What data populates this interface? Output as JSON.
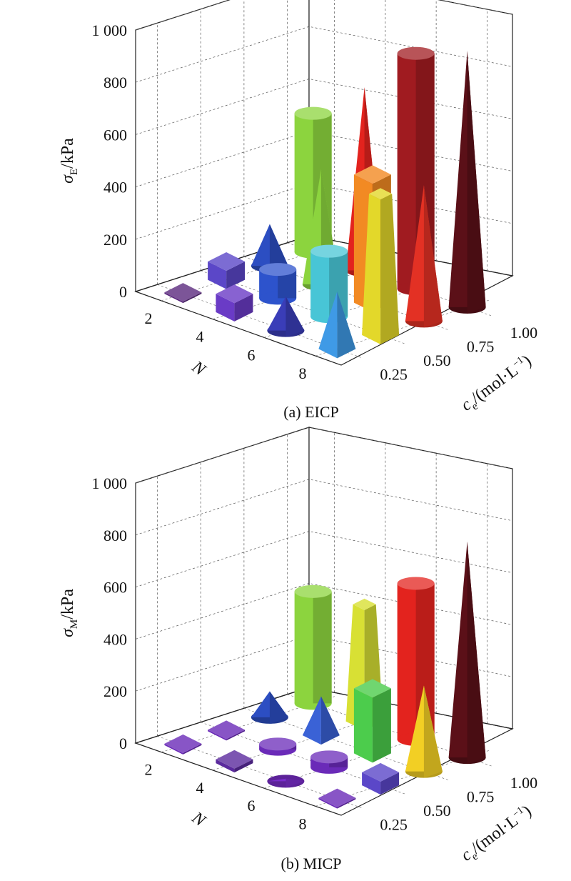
{
  "chart_data": [
    {
      "type": "bar3d",
      "caption": "(a) EICP",
      "ylabel_symbol": "σ",
      "ylabel_sub": "E",
      "ylabel_unit": "/kPa",
      "zlim": [
        0,
        1000
      ],
      "z_ticks": [
        "0",
        "200",
        "400",
        "600",
        "800",
        "1 000"
      ],
      "x_name": "N",
      "x_ticks": [
        "2",
        "4",
        "6",
        "8"
      ],
      "y_name_pre": "c",
      "y_name_sub": "e",
      "y_name_unit": "/(mol·L",
      "y_name_exp": "−1",
      "y_name_close": ")",
      "y_ticks": [
        "0.25",
        "0.50",
        "0.75",
        "1.00"
      ],
      "grid": true,
      "bars": [
        {
          "N": 2,
          "c": 0.25,
          "value": 5,
          "shape": "square",
          "color": "#5b2a7e"
        },
        {
          "N": 4,
          "c": 0.25,
          "value": 70,
          "shape": "square",
          "color": "#6a3bc6"
        },
        {
          "N": 6,
          "c": 0.25,
          "value": 130,
          "shape": "cone",
          "color": "#3a3db8"
        },
        {
          "N": 8,
          "c": 0.25,
          "value": 220,
          "shape": "pyramid",
          "color": "#3f9ae6"
        },
        {
          "N": 2,
          "c": 0.5,
          "value": 70,
          "shape": "hex",
          "color": "#5b47c8"
        },
        {
          "N": 4,
          "c": 0.5,
          "value": 110,
          "shape": "cylinder",
          "color": "#2d53cc"
        },
        {
          "N": 6,
          "c": 0.5,
          "value": 250,
          "shape": "cylinder",
          "color": "#48c5d6"
        },
        {
          "N": 8,
          "c": 0.5,
          "value": 540,
          "shape": "frustum",
          "color": "#e3d82a"
        },
        {
          "N": 2,
          "c": 0.75,
          "value": 160,
          "shape": "cone",
          "color": "#2c4ec2"
        },
        {
          "N": 4,
          "c": 0.75,
          "value": 440,
          "shape": "cone",
          "color": "#8cd43e"
        },
        {
          "N": 6,
          "c": 0.75,
          "value": 490,
          "shape": "box",
          "color": "#f28a23"
        },
        {
          "N": 8,
          "c": 0.75,
          "value": 520,
          "shape": "cone",
          "color": "#e33124"
        },
        {
          "N": 2,
          "c": 1.0,
          "value": 530,
          "shape": "cylinder",
          "color": "#8cd43e"
        },
        {
          "N": 4,
          "c": 1.0,
          "value": 700,
          "shape": "cone",
          "color": "#e3231e"
        },
        {
          "N": 6,
          "c": 1.0,
          "value": 900,
          "shape": "cylinder",
          "color": "#a01b20"
        },
        {
          "N": 8,
          "c": 1.0,
          "value": 980,
          "shape": "cone",
          "color": "#5b1018"
        }
      ]
    },
    {
      "type": "bar3d",
      "caption": "(b) MICP",
      "ylabel_symbol": "σ",
      "ylabel_sub": "M",
      "ylabel_unit": "/kPa",
      "zlim": [
        0,
        1000
      ],
      "z_ticks": [
        "0",
        "200",
        "400",
        "600",
        "800",
        "1 000"
      ],
      "x_name": "N",
      "x_ticks": [
        "2",
        "4",
        "6",
        "8"
      ],
      "y_name_pre": "c",
      "y_name_sub": "e",
      "y_name_unit": "/(mol·L",
      "y_name_exp": "−1",
      "y_name_close": ")",
      "y_ticks": [
        "0.25",
        "0.50",
        "0.75",
        "1.00"
      ],
      "grid": true,
      "bars": [
        {
          "N": 2,
          "c": 0.25,
          "value": 3,
          "shape": "square",
          "color": "#6a2ab8"
        },
        {
          "N": 4,
          "c": 0.25,
          "value": 15,
          "shape": "square",
          "color": "#5b2a9e"
        },
        {
          "N": 6,
          "c": 0.25,
          "value": 10,
          "shape": "cone",
          "color": "#7a2dcc"
        },
        {
          "N": 8,
          "c": 0.25,
          "value": 5,
          "shape": "square",
          "color": "#6a2ab8"
        },
        {
          "N": 2,
          "c": 0.5,
          "value": 5,
          "shape": "square",
          "color": "#6a2ab8"
        },
        {
          "N": 4,
          "c": 0.5,
          "value": 20,
          "shape": "cylinder",
          "color": "#6a2ab8"
        },
        {
          "N": 6,
          "c": 0.5,
          "value": 40,
          "shape": "cylinder",
          "color": "#6a2ab8"
        },
        {
          "N": 8,
          "c": 0.5,
          "value": 50,
          "shape": "box",
          "color": "#5b47c8"
        },
        {
          "N": 2,
          "c": 0.75,
          "value": 100,
          "shape": "cone",
          "color": "#2c4ec2"
        },
        {
          "N": 4,
          "c": 0.75,
          "value": 150,
          "shape": "pyramid",
          "color": "#3a62d6"
        },
        {
          "N": 6,
          "c": 0.75,
          "value": 250,
          "shape": "box",
          "color": "#4ccc4c"
        },
        {
          "N": 8,
          "c": 0.75,
          "value": 330,
          "shape": "cone",
          "color": "#f2cf24"
        },
        {
          "N": 2,
          "c": 1.0,
          "value": 430,
          "shape": "cylinder",
          "color": "#8cd43e"
        },
        {
          "N": 4,
          "c": 1.0,
          "value": 450,
          "shape": "frustum",
          "color": "#d8e034"
        },
        {
          "N": 6,
          "c": 1.0,
          "value": 600,
          "shape": "cylinder",
          "color": "#e3231e"
        },
        {
          "N": 8,
          "c": 1.0,
          "value": 830,
          "shape": "cone",
          "color": "#5b1018"
        }
      ]
    }
  ]
}
